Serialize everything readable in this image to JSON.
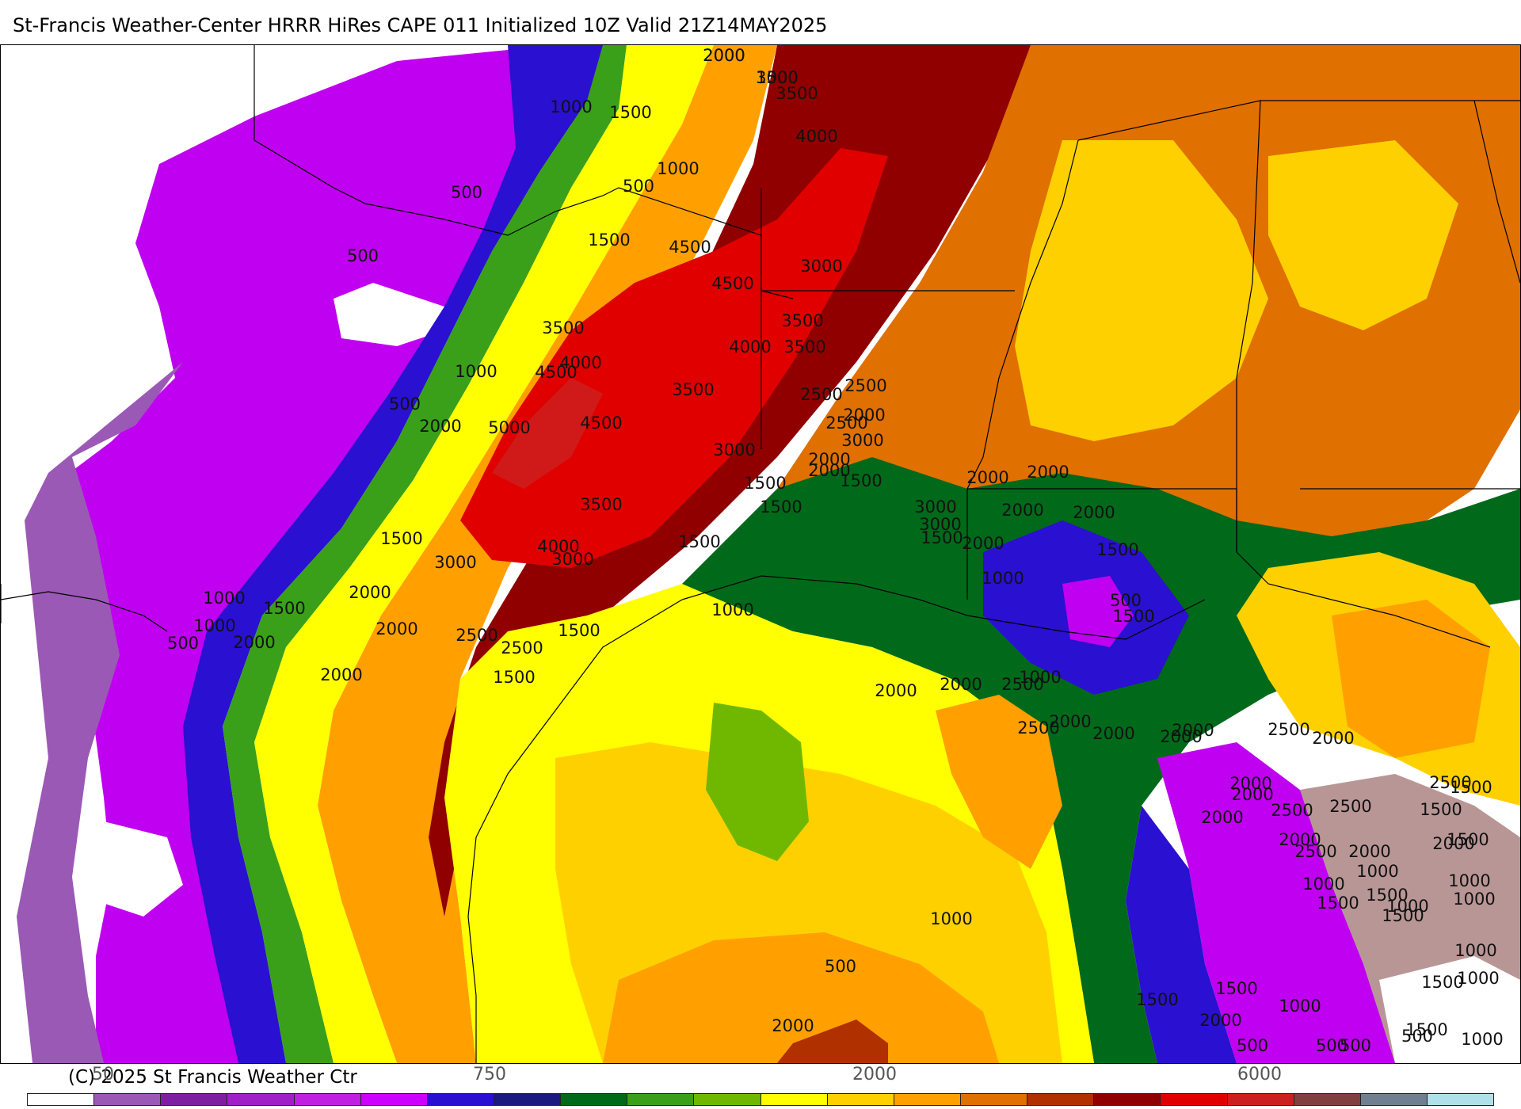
{
  "header": {
    "title": "St-Francis Weather-Center HRRR HiRes CAPE  011 Initialized  10Z Valid 21Z14MAY2025"
  },
  "footer": {
    "copyright": "(C) 2025 St Francis Weather Ctr",
    "colorbar_ticks": [
      "50",
      "750",
      "2000",
      "6000"
    ]
  },
  "colorbar": {
    "colors": [
      "#ffffff",
      "#9b59b6",
      "#7d1fa0",
      "#a020c8",
      "#c020e0",
      "#cc00ff",
      "#2a10d0",
      "#1a1a80",
      "#006a1a",
      "#3aa01a",
      "#70b800",
      "#ffff00",
      "#ffd000",
      "#ffa000",
      "#e07000",
      "#b03000",
      "#900000",
      "#e00000",
      "#cc2020",
      "#804040",
      "#708090",
      "#b0e0e8"
    ]
  },
  "map": {
    "contour_labels": [
      "2000",
      "3000",
      "3500",
      "1000",
      "1500",
      "4000",
      "1000",
      "500",
      "500",
      "1500",
      "4500",
      "500",
      "3000",
      "4500",
      "3500",
      "3500",
      "3500",
      "4000",
      "1000",
      "4000",
      "4500",
      "3500",
      "500",
      "2000",
      "5000",
      "4500",
      "3000",
      "2500",
      "2500",
      "2000",
      "2500",
      "3000",
      "2000",
      "3500",
      "1500",
      "4000",
      "3000",
      "2000",
      "1000",
      "1500",
      "3000",
      "1500",
      "2000",
      "1000",
      "500",
      "2500",
      "1500",
      "1000",
      "2000",
      "2500",
      "1500",
      "2000",
      "1500",
      "1500",
      "2000",
      "1500",
      "2000",
      "2000",
      "2000",
      "3000",
      "2000",
      "1500",
      "3000",
      "2000",
      "1500",
      "1000",
      "500",
      "1500",
      "1000",
      "2500",
      "2000",
      "2000",
      "2500",
      "2000",
      "2000",
      "2000",
      "2000",
      "2500",
      "2000",
      "2000",
      "2000",
      "2000",
      "2500",
      "2000",
      "2500",
      "2500",
      "2000",
      "2500",
      "2000",
      "1500",
      "1500",
      "1000",
      "1000",
      "1500",
      "1500",
      "1000",
      "1500",
      "1000",
      "1500",
      "1000",
      "1000",
      "1000",
      "1500",
      "1500",
      "2000",
      "1500",
      "1000",
      "500",
      "500",
      "1000",
      "500",
      "500",
      "1500",
      "1000",
      "500",
      "2000",
      "2000",
      "1500"
    ]
  },
  "colors": {
    "map_background": "#ffffff",
    "state_lines": "#000000"
  }
}
